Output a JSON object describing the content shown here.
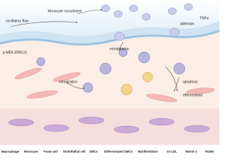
{
  "labels": {
    "monocyte_recruitment": "Monocyte recruitment",
    "oscillatory_flow": "oscillatory flow",
    "tnf": "TNFα",
    "adhesion": "adhesion",
    "mek": "p-MEK-ERK1/2",
    "emmigration": "emmigration",
    "immigration": "immigration",
    "apoptosis": "apoptosis",
    "efferocytosis": "efferocytosis"
  },
  "legend": {
    "items": [
      "Macrophage",
      "Monocyte",
      "Foam cell",
      "Endothelial cell",
      "SMCs",
      "Differentiated SMCs",
      "Myofibroblast",
      "ox-LDL",
      "Netrin-1",
      "RGMs"
    ]
  }
}
